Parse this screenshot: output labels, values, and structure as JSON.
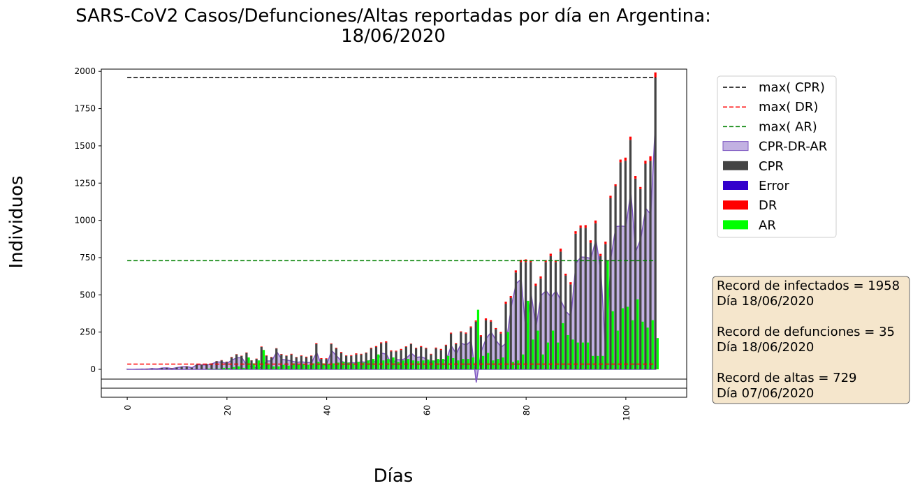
{
  "chart_data": {
    "type": "bar",
    "title": [
      "SARS-CoV2 Casos/Defunciones/Altas reportadas por día en Argentina:",
      "18/06/2020"
    ],
    "x_label": "Días",
    "y_label": "Individuos",
    "xlim": [
      -5.2,
      112.2
    ],
    "xticks": [
      0,
      20,
      40,
      60,
      80,
      100
    ],
    "ylim": [
      0,
      2015
    ],
    "yticks": [
      0,
      250,
      500,
      750,
      1000,
      1250,
      1500,
      1750,
      2000
    ],
    "x": [
      0,
      1,
      2,
      3,
      4,
      5,
      6,
      7,
      8,
      9,
      10,
      11,
      12,
      13,
      14,
      15,
      16,
      17,
      18,
      19,
      20,
      21,
      22,
      23,
      24,
      25,
      26,
      27,
      28,
      29,
      30,
      31,
      32,
      33,
      34,
      35,
      36,
      37,
      38,
      39,
      40,
      41,
      42,
      43,
      44,
      45,
      46,
      47,
      48,
      49,
      50,
      51,
      52,
      53,
      54,
      55,
      56,
      57,
      58,
      59,
      60,
      61,
      62,
      63,
      64,
      65,
      66,
      67,
      68,
      69,
      70,
      71,
      72,
      73,
      74,
      75,
      76,
      77,
      78,
      79,
      80,
      81,
      82,
      83,
      84,
      85,
      86,
      87,
      88,
      89,
      90,
      91,
      92,
      93,
      94,
      95,
      96,
      97,
      98,
      99,
      100,
      101,
      102,
      103,
      104,
      105,
      106
    ],
    "max_lines": [
      {
        "name": "max( CPR)",
        "color": "#000000",
        "value": 1958
      },
      {
        "name": "max( DR)",
        "color": "#ff0000",
        "value": 35
      },
      {
        "name": "max( AR)",
        "color": "#008000",
        "value": 729
      }
    ],
    "series": [
      {
        "name": "CPR-DR-AR",
        "color": "#b39ddb",
        "kind": "area",
        "values": [
          1,
          0,
          1,
          2,
          2,
          5,
          3,
          9,
          10,
          5,
          12,
          17,
          18,
          11,
          31,
          30,
          29,
          37,
          50,
          48,
          40,
          62,
          78,
          78,
          27,
          19,
          8,
          17,
          56,
          57,
          118,
          67,
          62,
          56,
          47,
          51,
          45,
          47,
          114,
          25,
          31,
          126,
          90,
          54,
          41,
          45,
          43,
          51,
          47,
          65,
          44,
          109,
          102,
          33,
          65,
          63,
          76,
          107,
          80,
          84,
          70,
          36,
          64,
          53,
          65,
          159,
          104,
          175,
          163,
          192,
          -88,
          121,
          208,
          250,
          193,
          149,
          176,
          418,
          576,
          605,
          242,
          508,
          285,
          496,
          527,
          484,
          527,
          460,
          388,
          355,
          713,
          754,
          752,
          744,
          871,
          655,
          94,
          745,
          958,
          962,
          959,
          1188,
          792,
          876,
          1080,
          1040,
          1713
        ]
      },
      {
        "name": "CPR",
        "color": "#444444",
        "kind": "bar",
        "values": [
          1,
          0,
          1,
          2,
          3,
          5,
          3,
          9,
          10,
          6,
          12,
          17,
          19,
          11,
          31,
          31,
          35,
          40,
          55,
          60,
          50,
          80,
          100,
          90,
          110,
          60,
          70,
          150,
          90,
          80,
          140,
          100,
          90,
          100,
          80,
          90,
          80,
          90,
          170,
          70,
          70,
          170,
          140,
          110,
          90,
          90,
          100,
          100,
          110,
          140,
          150,
          175,
          180,
          120,
          120,
          130,
          150,
          170,
          140,
          150,
          140,
          100,
          140,
          130,
          160,
          240,
          170,
          250,
          240,
          280,
          320,
          220,
          330,
          320,
          270,
          240,
          440,
          480,
          650,
          720,
          720,
          720,
          560,
          610,
          720,
          760,
          720,
          790,
          630,
          570,
          910,
          950,
          950,
          850,
          980,
          760,
          840,
          1150,
          1230,
          1390,
          1400,
          1540,
          1280,
          1210,
          1380,
          1400,
          1958
        ]
      },
      {
        "name": "Error",
        "color": "#3300cc",
        "kind": "none"
      },
      {
        "name": "DR",
        "color": "#ff0000",
        "kind": "stack",
        "values": [
          0,
          0,
          0,
          0,
          1,
          0,
          0,
          0,
          0,
          1,
          0,
          0,
          1,
          0,
          0,
          1,
          1,
          0,
          1,
          2,
          2,
          3,
          2,
          2,
          3,
          1,
          2,
          3,
          4,
          3,
          2,
          3,
          3,
          4,
          3,
          4,
          5,
          3,
          6,
          5,
          4,
          4,
          5,
          6,
          4,
          5,
          7,
          4,
          3,
          5,
          6,
          6,
          8,
          7,
          5,
          7,
          4,
          3,
          5,
          6,
          5,
          4,
          6,
          7,
          5,
          6,
          6,
          5,
          7,
          8,
          8,
          9,
          12,
          10,
          7,
          11,
          14,
          12,
          14,
          15,
          18,
          12,
          15,
          14,
          13,
          16,
          13,
          20,
          12,
          15,
          17,
          16,
          18,
          16,
          19,
          15,
          17,
          15,
          12,
          18,
          21,
          22,
          18,
          14,
          20,
          30,
          35
        ]
      },
      {
        "name": "AR",
        "color": "#00ff00",
        "kind": "side",
        "values": [
          0,
          0,
          0,
          0,
          0,
          0,
          0,
          0,
          0,
          0,
          0,
          0,
          0,
          0,
          0,
          0,
          5,
          3,
          4,
          10,
          8,
          15,
          20,
          10,
          80,
          40,
          60,
          130,
          30,
          20,
          20,
          30,
          25,
          40,
          30,
          35,
          30,
          40,
          50,
          40,
          35,
          40,
          45,
          50,
          45,
          40,
          50,
          45,
          60,
          70,
          100,
          60,
          70,
          80,
          50,
          60,
          70,
          60,
          55,
          60,
          65,
          60,
          70,
          70,
          90,
          75,
          60,
          70,
          70,
          80,
          400,
          90,
          110,
          60,
          70,
          80,
          250,
          50,
          60,
          100,
          460,
          200,
          260,
          100,
          180,
          260,
          180,
          310,
          230,
          200,
          180,
          180,
          180,
          90,
          90,
          90,
          729,
          390,
          260,
          410,
          420,
          330,
          470,
          320,
          280,
          330,
          210
        ]
      }
    ],
    "records": [
      "Record de infectados = 1958",
      "Día 18/06/2020",
      "",
      "Record de defunciones = 35",
      "Día 18/06/2020",
      "",
      "Record de altas = 729",
      "Día 07/06/2020"
    ]
  }
}
